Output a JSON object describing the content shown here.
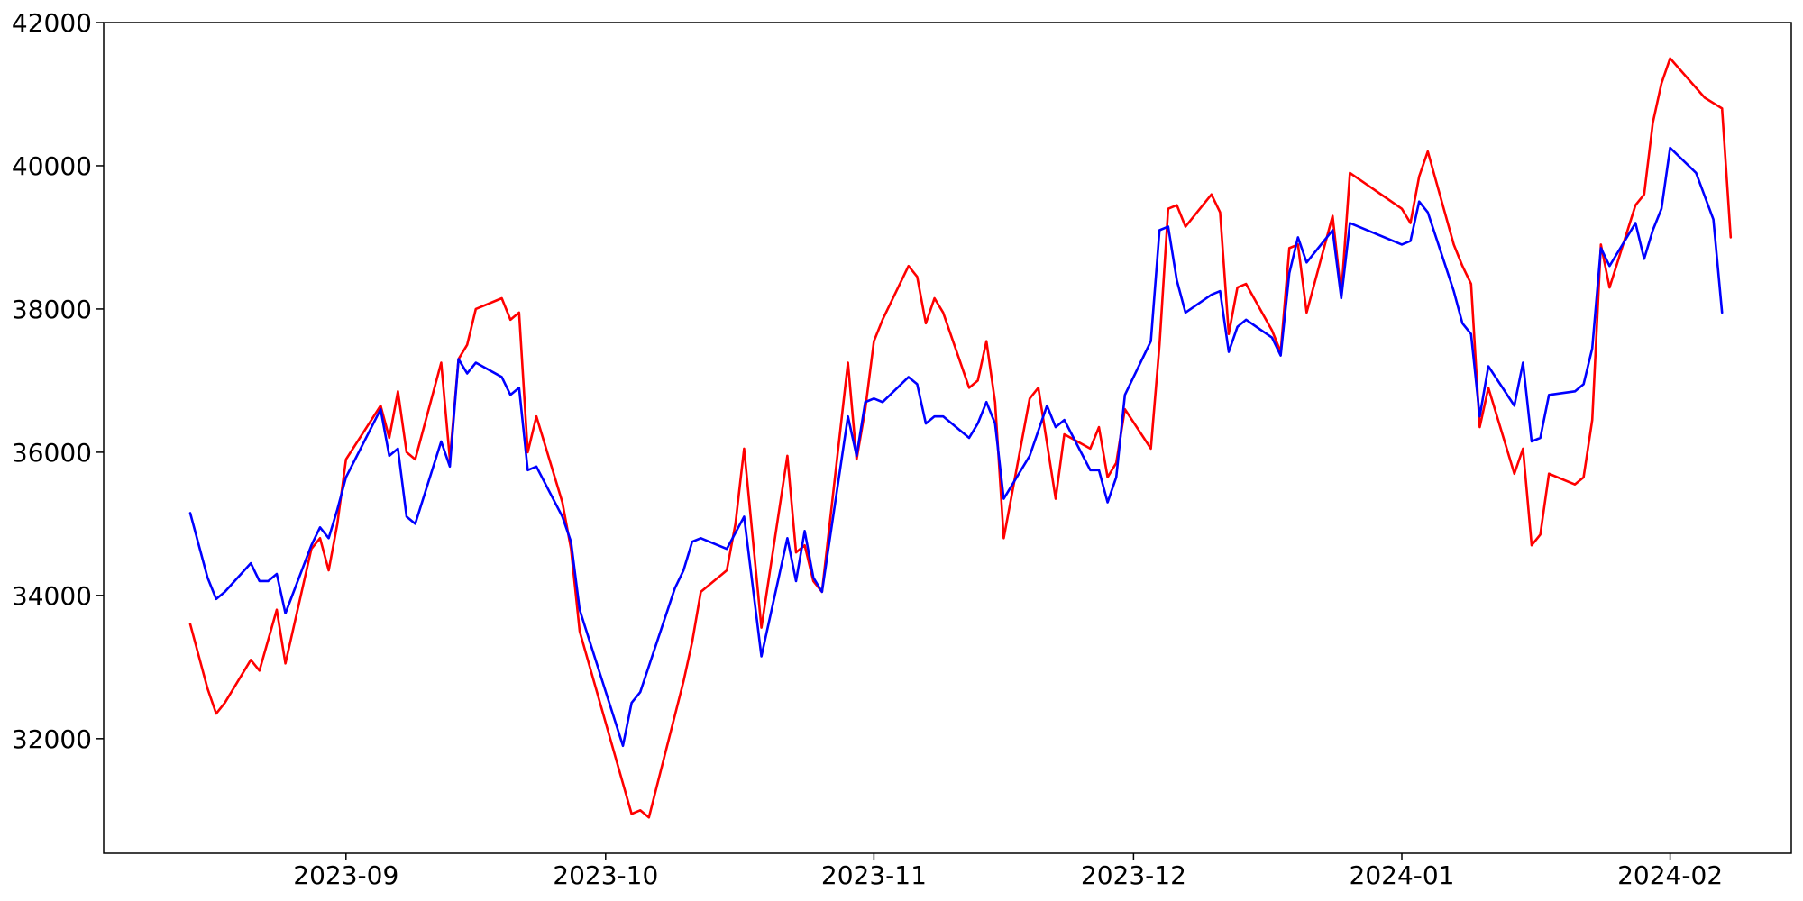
{
  "chart_data": {
    "type": "line",
    "title": "",
    "xlabel": "",
    "ylabel": "",
    "grid": false,
    "legend": "none",
    "xlim": [
      "2023-08-04",
      "2024-02-15"
    ],
    "ylim": [
      30400,
      42000
    ],
    "x_ticks": [
      "2023-09-01",
      "2023-10-01",
      "2023-11-01",
      "2023-12-01",
      "2024-01-01",
      "2024-02-01"
    ],
    "x_tick_labels": [
      "2023-09",
      "2023-10",
      "2023-11",
      "2023-12",
      "2024-01",
      "2024-02"
    ],
    "y_ticks": [
      32000,
      34000,
      36000,
      38000,
      40000,
      42000
    ],
    "y_tick_labels": [
      "32000",
      "34000",
      "36000",
      "38000",
      "40000",
      "42000"
    ],
    "series": [
      {
        "color": "#ff0000",
        "points": [
          [
            "2023-08-14",
            33600
          ],
          [
            "2023-08-16",
            32700
          ],
          [
            "2023-08-17",
            32350
          ],
          [
            "2023-08-18",
            32500
          ],
          [
            "2023-08-21",
            33100
          ],
          [
            "2023-08-22",
            32950
          ],
          [
            "2023-08-24",
            33800
          ],
          [
            "2023-08-25",
            33050
          ],
          [
            "2023-08-28",
            34650
          ],
          [
            "2023-08-29",
            34800
          ],
          [
            "2023-08-30",
            34350
          ],
          [
            "2023-08-31",
            35000
          ],
          [
            "2023-09-01",
            35900
          ],
          [
            "2023-09-05",
            36650
          ],
          [
            "2023-09-06",
            36200
          ],
          [
            "2023-09-07",
            36850
          ],
          [
            "2023-09-08",
            36000
          ],
          [
            "2023-09-09",
            35900
          ],
          [
            "2023-09-12",
            37250
          ],
          [
            "2023-09-13",
            35900
          ],
          [
            "2023-09-14",
            37300
          ],
          [
            "2023-09-15",
            37500
          ],
          [
            "2023-09-16",
            38000
          ],
          [
            "2023-09-19",
            38150
          ],
          [
            "2023-09-20",
            37850
          ],
          [
            "2023-09-21",
            37950
          ],
          [
            "2023-09-22",
            36000
          ],
          [
            "2023-09-23",
            36500
          ],
          [
            "2023-09-26",
            35300
          ],
          [
            "2023-09-27",
            34650
          ],
          [
            "2023-09-28",
            33500
          ],
          [
            "2023-10-04",
            30950
          ],
          [
            "2023-10-05",
            31000
          ],
          [
            "2023-10-06",
            30900
          ],
          [
            "2023-10-10",
            32800
          ],
          [
            "2023-10-11",
            33350
          ],
          [
            "2023-10-12",
            34050
          ],
          [
            "2023-10-15",
            34350
          ],
          [
            "2023-10-16",
            35000
          ],
          [
            "2023-10-17",
            36050
          ],
          [
            "2023-10-19",
            33550
          ],
          [
            "2023-10-22",
            35950
          ],
          [
            "2023-10-23",
            34600
          ],
          [
            "2023-10-24",
            34700
          ],
          [
            "2023-10-25",
            34200
          ],
          [
            "2023-10-26",
            34050
          ],
          [
            "2023-10-29",
            37250
          ],
          [
            "2023-10-30",
            35900
          ],
          [
            "2023-10-31",
            36600
          ],
          [
            "2023-11-01",
            37550
          ],
          [
            "2023-11-02",
            37850
          ],
          [
            "2023-11-05",
            38600
          ],
          [
            "2023-11-06",
            38450
          ],
          [
            "2023-11-07",
            37800
          ],
          [
            "2023-11-08",
            38150
          ],
          [
            "2023-11-09",
            37950
          ],
          [
            "2023-11-12",
            36900
          ],
          [
            "2023-11-13",
            37000
          ],
          [
            "2023-11-14",
            37550
          ],
          [
            "2023-11-15",
            36700
          ],
          [
            "2023-11-16",
            34800
          ],
          [
            "2023-11-19",
            36750
          ],
          [
            "2023-11-20",
            36900
          ],
          [
            "2023-11-22",
            35350
          ],
          [
            "2023-11-23",
            36250
          ],
          [
            "2023-11-26",
            36050
          ],
          [
            "2023-11-27",
            36350
          ],
          [
            "2023-11-28",
            35650
          ],
          [
            "2023-11-29",
            35850
          ],
          [
            "2023-11-30",
            36600
          ],
          [
            "2023-12-03",
            36050
          ],
          [
            "2023-12-04",
            37500
          ],
          [
            "2023-12-05",
            39400
          ],
          [
            "2023-12-06",
            39450
          ],
          [
            "2023-12-07",
            39150
          ],
          [
            "2023-12-10",
            39600
          ],
          [
            "2023-12-11",
            39350
          ],
          [
            "2023-12-12",
            37650
          ],
          [
            "2023-12-13",
            38300
          ],
          [
            "2023-12-14",
            38350
          ],
          [
            "2023-12-17",
            37700
          ],
          [
            "2023-12-18",
            37400
          ],
          [
            "2023-12-19",
            38850
          ],
          [
            "2023-12-20",
            38900
          ],
          [
            "2023-12-21",
            37950
          ],
          [
            "2023-12-24",
            39300
          ],
          [
            "2023-12-25",
            38200
          ],
          [
            "2023-12-26",
            39900
          ],
          [
            "2024-01-01",
            39400
          ],
          [
            "2024-01-02",
            39200
          ],
          [
            "2024-01-03",
            39850
          ],
          [
            "2024-01-04",
            40200
          ],
          [
            "2024-01-07",
            38900
          ],
          [
            "2024-01-08",
            38600
          ],
          [
            "2024-01-09",
            38350
          ],
          [
            "2024-01-10",
            36350
          ],
          [
            "2024-01-11",
            36900
          ],
          [
            "2024-01-14",
            35700
          ],
          [
            "2024-01-15",
            36050
          ],
          [
            "2024-01-16",
            34700
          ],
          [
            "2024-01-17",
            34850
          ],
          [
            "2024-01-18",
            35700
          ],
          [
            "2024-01-21",
            35550
          ],
          [
            "2024-01-22",
            35650
          ],
          [
            "2024-01-23",
            36450
          ],
          [
            "2024-01-24",
            38900
          ],
          [
            "2024-01-25",
            38300
          ],
          [
            "2024-01-28",
            39450
          ],
          [
            "2024-01-29",
            39600
          ],
          [
            "2024-01-30",
            40600
          ],
          [
            "2024-01-31",
            41150
          ],
          [
            "2024-02-01",
            41500
          ],
          [
            "2024-02-05",
            40950
          ],
          [
            "2024-02-07",
            40800
          ],
          [
            "2024-02-08",
            39000
          ]
        ]
      },
      {
        "color": "#0000ff",
        "points": [
          [
            "2023-08-14",
            35150
          ],
          [
            "2023-08-16",
            34250
          ],
          [
            "2023-08-17",
            33950
          ],
          [
            "2023-08-18",
            34050
          ],
          [
            "2023-08-21",
            34450
          ],
          [
            "2023-08-22",
            34200
          ],
          [
            "2023-08-23",
            34200
          ],
          [
            "2023-08-24",
            34300
          ],
          [
            "2023-08-25",
            33750
          ],
          [
            "2023-08-28",
            34700
          ],
          [
            "2023-08-29",
            34950
          ],
          [
            "2023-08-30",
            34800
          ],
          [
            "2023-08-31",
            35200
          ],
          [
            "2023-09-01",
            35650
          ],
          [
            "2023-09-05",
            36600
          ],
          [
            "2023-09-06",
            35950
          ],
          [
            "2023-09-07",
            36050
          ],
          [
            "2023-09-08",
            35100
          ],
          [
            "2023-09-09",
            35000
          ],
          [
            "2023-09-12",
            36150
          ],
          [
            "2023-09-13",
            35800
          ],
          [
            "2023-09-14",
            37300
          ],
          [
            "2023-09-15",
            37100
          ],
          [
            "2023-09-16",
            37250
          ],
          [
            "2023-09-19",
            37050
          ],
          [
            "2023-09-20",
            36800
          ],
          [
            "2023-09-21",
            36900
          ],
          [
            "2023-09-22",
            35750
          ],
          [
            "2023-09-23",
            35800
          ],
          [
            "2023-09-26",
            35100
          ],
          [
            "2023-09-27",
            34750
          ],
          [
            "2023-09-28",
            33800
          ],
          [
            "2023-10-03",
            31900
          ],
          [
            "2023-10-04",
            32500
          ],
          [
            "2023-10-05",
            32650
          ],
          [
            "2023-10-09",
            34100
          ],
          [
            "2023-10-10",
            34350
          ],
          [
            "2023-10-11",
            34750
          ],
          [
            "2023-10-12",
            34800
          ],
          [
            "2023-10-15",
            34650
          ],
          [
            "2023-10-17",
            35100
          ],
          [
            "2023-10-19",
            33150
          ],
          [
            "2023-10-22",
            34800
          ],
          [
            "2023-10-23",
            34200
          ],
          [
            "2023-10-24",
            34900
          ],
          [
            "2023-10-25",
            34250
          ],
          [
            "2023-10-26",
            34050
          ],
          [
            "2023-10-29",
            36500
          ],
          [
            "2023-10-30",
            35950
          ],
          [
            "2023-10-31",
            36700
          ],
          [
            "2023-11-01",
            36750
          ],
          [
            "2023-11-02",
            36700
          ],
          [
            "2023-11-05",
            37050
          ],
          [
            "2023-11-06",
            36950
          ],
          [
            "2023-11-07",
            36400
          ],
          [
            "2023-11-08",
            36500
          ],
          [
            "2023-11-09",
            36500
          ],
          [
            "2023-11-12",
            36200
          ],
          [
            "2023-11-13",
            36400
          ],
          [
            "2023-11-14",
            36700
          ],
          [
            "2023-11-15",
            36400
          ],
          [
            "2023-11-16",
            35350
          ],
          [
            "2023-11-19",
            35950
          ],
          [
            "2023-11-21",
            36650
          ],
          [
            "2023-11-22",
            36350
          ],
          [
            "2023-11-23",
            36450
          ],
          [
            "2023-11-26",
            35750
          ],
          [
            "2023-11-27",
            35750
          ],
          [
            "2023-11-28",
            35300
          ],
          [
            "2023-11-29",
            35650
          ],
          [
            "2023-11-30",
            36800
          ],
          [
            "2023-12-03",
            37550
          ],
          [
            "2023-12-04",
            39100
          ],
          [
            "2023-12-05",
            39150
          ],
          [
            "2023-12-06",
            38400
          ],
          [
            "2023-12-07",
            37950
          ],
          [
            "2023-12-10",
            38200
          ],
          [
            "2023-12-11",
            38250
          ],
          [
            "2023-12-12",
            37400
          ],
          [
            "2023-12-13",
            37750
          ],
          [
            "2023-12-14",
            37850
          ],
          [
            "2023-12-17",
            37600
          ],
          [
            "2023-12-18",
            37350
          ],
          [
            "2023-12-19",
            38500
          ],
          [
            "2023-12-20",
            39000
          ],
          [
            "2023-12-21",
            38650
          ],
          [
            "2023-12-24",
            39100
          ],
          [
            "2023-12-25",
            38150
          ],
          [
            "2023-12-26",
            39200
          ],
          [
            "2024-01-01",
            38900
          ],
          [
            "2024-01-02",
            38950
          ],
          [
            "2024-01-03",
            39500
          ],
          [
            "2024-01-04",
            39350
          ],
          [
            "2024-01-07",
            38250
          ],
          [
            "2024-01-08",
            37800
          ],
          [
            "2024-01-09",
            37650
          ],
          [
            "2024-01-10",
            36500
          ],
          [
            "2024-01-11",
            37200
          ],
          [
            "2024-01-14",
            36650
          ],
          [
            "2024-01-15",
            37250
          ],
          [
            "2024-01-16",
            36150
          ],
          [
            "2024-01-17",
            36200
          ],
          [
            "2024-01-18",
            36800
          ],
          [
            "2024-01-21",
            36850
          ],
          [
            "2024-01-22",
            36950
          ],
          [
            "2024-01-23",
            37450
          ],
          [
            "2024-01-24",
            38850
          ],
          [
            "2024-01-25",
            38600
          ],
          [
            "2024-01-28",
            39200
          ],
          [
            "2024-01-29",
            38700
          ],
          [
            "2024-01-30",
            39100
          ],
          [
            "2024-01-31",
            39400
          ],
          [
            "2024-02-01",
            40250
          ],
          [
            "2024-02-04",
            39900
          ],
          [
            "2024-02-06",
            39250
          ],
          [
            "2024-02-07",
            37950
          ]
        ]
      }
    ]
  }
}
